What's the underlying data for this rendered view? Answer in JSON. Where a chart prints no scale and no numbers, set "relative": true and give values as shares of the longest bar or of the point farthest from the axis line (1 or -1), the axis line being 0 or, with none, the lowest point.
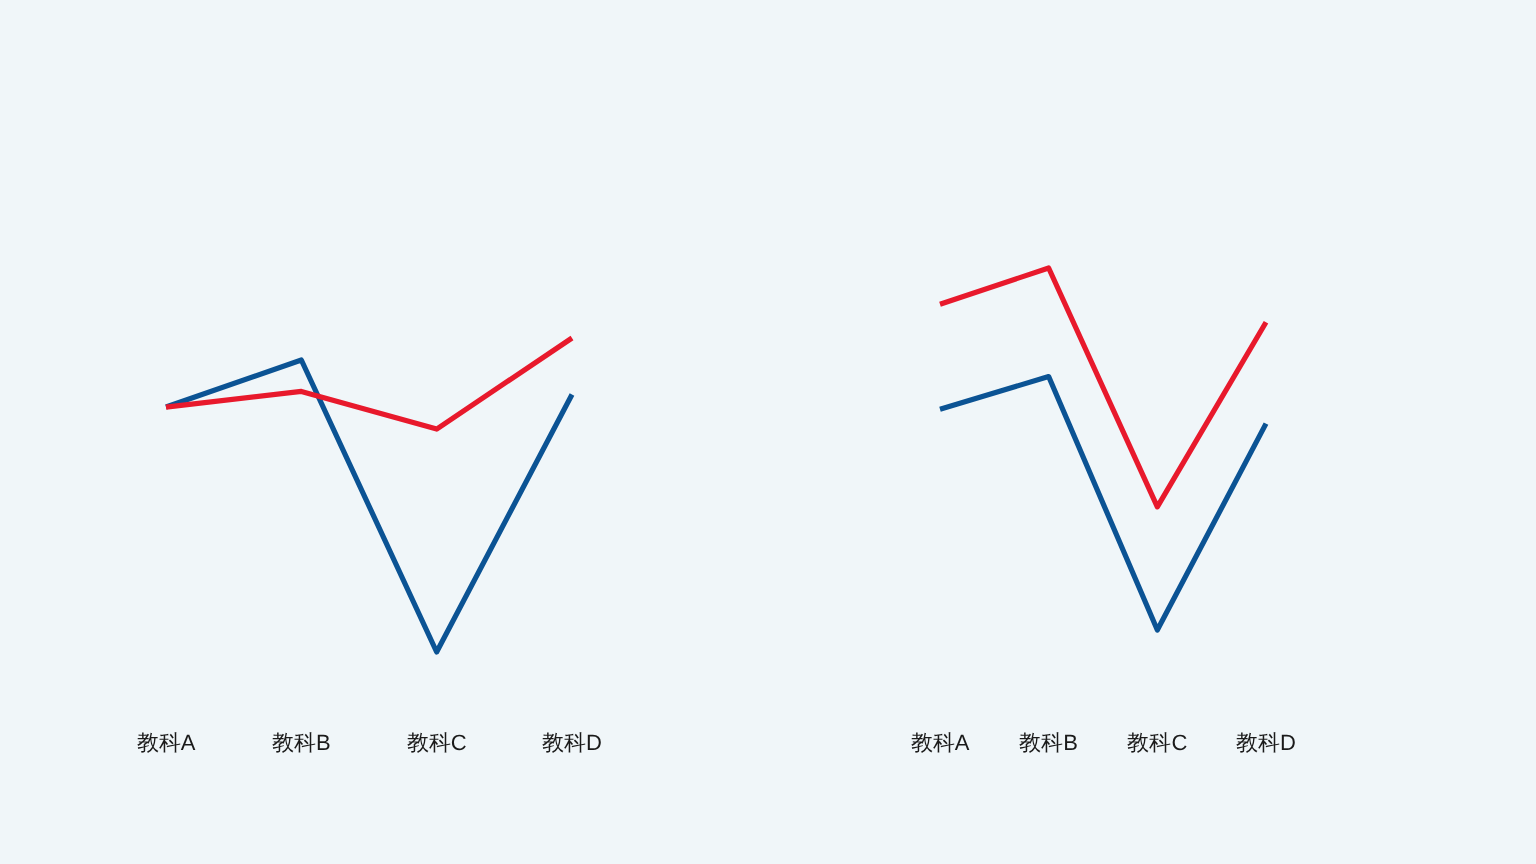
{
  "chart_data": [
    {
      "type": "line",
      "relative": true,
      "categories": [
        "教科A",
        "教科B",
        "教科C",
        "教科D"
      ],
      "series": [
        {
          "color": "#0b5394",
          "values": [
            0.78,
            0.93,
            0,
            0.82
          ]
        },
        {
          "color": "#e8192c",
          "values": [
            0.78,
            0.83,
            0.71,
            1
          ]
        }
      ]
    },
    {
      "type": "line",
      "relative": true,
      "categories": [
        "教科A",
        "教科B",
        "教科C",
        "教科D"
      ],
      "series": [
        {
          "color": "#e8192c",
          "values": [
            0.9,
            1,
            0.34,
            0.85
          ]
        },
        {
          "color": "#0b5394",
          "values": [
            0.61,
            0.7,
            0,
            0.57
          ]
        }
      ]
    }
  ]
}
